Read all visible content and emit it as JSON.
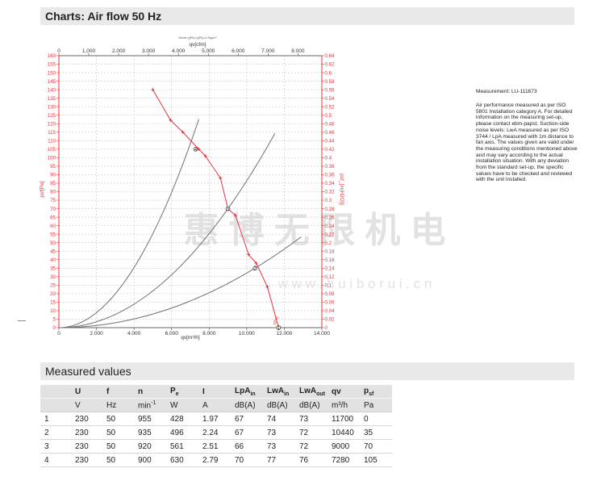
{
  "header": {
    "title": "Charts: Air flow 50 Hz"
  },
  "chart_data": {
    "type": "line",
    "caption": "Dichte ρ(Ph)=ρ(Ph)=1.2kg/m³",
    "xlabel": "qv[m³/h]",
    "xlabel_top": "qv[cfm]",
    "ylabel": "psf[Pa]",
    "ylabel_right": "psf_[in(H2O)]",
    "xlim": [
      0,
      14000
    ],
    "ylim": [
      0,
      160
    ],
    "x_ticks": [
      "0",
      "2.000",
      "4.000",
      "6.000",
      "8.000",
      "10.000",
      "12.000",
      "14.000"
    ],
    "x_top_ticks": [
      "0",
      "1.000",
      "2.000",
      "3.000",
      "4.000",
      "5.000",
      "6.000",
      "7.000",
      "8.000"
    ],
    "y_ticks": [
      "0",
      "5",
      "10",
      "15",
      "20",
      "25",
      "30",
      "35",
      "40",
      "45",
      "50",
      "55",
      "60",
      "65",
      "70",
      "75",
      "80",
      "85",
      "90",
      "95",
      "100",
      "105",
      "110",
      "115",
      "120",
      "125",
      "130",
      "135",
      "140",
      "145",
      "150",
      "155",
      "160"
    ],
    "y_right_ticks": [
      "0",
      "0.02",
      "0.04",
      "0.06",
      "0.08",
      "0.1",
      "0.12",
      "0.14",
      "0.16",
      "0.18",
      "0.2",
      "0.22",
      "0.24",
      "0.26",
      "0.28",
      "0.3",
      "0.32",
      "0.34",
      "0.36",
      "0.38",
      "0.4",
      "0.42",
      "0.44",
      "0.46",
      "0.48",
      "0.5",
      "0.52",
      "0.54",
      "0.56",
      "0.58",
      "0.6",
      "0.62",
      "0.64"
    ],
    "grid": true,
    "fan_curve": {
      "color": "#e8323a",
      "x": [
        5000,
        5950,
        6600,
        7450,
        7800,
        8600,
        9000,
        9400,
        10100,
        10500,
        11100,
        11700
      ],
      "y": [
        140,
        122,
        115,
        105,
        101,
        88,
        70,
        66,
        43,
        38,
        24,
        0
      ]
    },
    "operating_points": [
      {
        "label": "1",
        "x": 11700,
        "y": 0
      },
      {
        "label": "2",
        "x": 10440,
        "y": 35
      },
      {
        "label": "3",
        "x": 9000,
        "y": 70
      },
      {
        "label": "4",
        "x": 7280,
        "y": 105
      }
    ],
    "system_curves": [
      {
        "label": "1",
        "k": 2.21e-06,
        "xmax": 7450
      },
      {
        "label": "2",
        "k": 8.64e-07,
        "xmax": 11500
      },
      {
        "label": "3",
        "k": 3.21e-07,
        "xmax": 12900
      }
    ],
    "curve_end_label": "n[%]"
  },
  "measurement": {
    "id": "Measurement: LU-111673",
    "description": "Air performance measured as per ISO 5801 Installation category A. For detailed information on the measuring set-up, please contact ebm-papst. Suction-side noise levels: LwA measured as per ISO 3744 / LpA measured with 1m distance to fan axis. The values given are valid under the measuring conditions mentioned above and may vary according to the actual installation situation. With any deviation from the standard set-up, the specific values have to be checked and reviewed with the unit installed."
  },
  "watermark": {
    "text": "惠 博 无 限 机 电",
    "url": "w w w . h u i b o r u i . c n",
    "color": "#e2e2e2"
  },
  "measured_values": {
    "title": "Measured values",
    "columns": [
      {
        "sym": "U",
        "sub": "",
        "unit": "V",
        "usup": ""
      },
      {
        "sym": "f",
        "sub": "",
        "unit": "Hz",
        "usup": ""
      },
      {
        "sym": "n",
        "sub": "",
        "unit": "min",
        "usup": "-1"
      },
      {
        "sym": "P",
        "sub": "e",
        "unit": "W",
        "usup": ""
      },
      {
        "sym": "I",
        "sub": "",
        "unit": "A",
        "usup": ""
      },
      {
        "sym": "LpA",
        "sub": "in",
        "unit": "dB(A)",
        "usup": ""
      },
      {
        "sym": "LwA",
        "sub": "in",
        "unit": "dB(A)",
        "usup": ""
      },
      {
        "sym": "LwA",
        "sub": "out",
        "unit": "dB(A)",
        "usup": ""
      },
      {
        "sym": "qv",
        "sub": "",
        "unit": "m³/h",
        "usup": ""
      },
      {
        "sym": "p",
        "sub": "sf",
        "unit": "Pa",
        "usup": ""
      }
    ],
    "rows": [
      {
        "no": "1",
        "values": [
          "230",
          "50",
          "955",
          "428",
          "1.97",
          "67",
          "74",
          "73",
          "11700",
          "0"
        ]
      },
      {
        "no": "2",
        "values": [
          "230",
          "50",
          "935",
          "496",
          "2.24",
          "67",
          "73",
          "72",
          "10440",
          "35"
        ]
      },
      {
        "no": "3",
        "values": [
          "230",
          "50",
          "920",
          "561",
          "2.51",
          "66",
          "73",
          "72",
          "9000",
          "70"
        ]
      },
      {
        "no": "4",
        "values": [
          "230",
          "50",
          "900",
          "630",
          "2.79",
          "70",
          "77",
          "76",
          "7280",
          "105"
        ]
      }
    ]
  }
}
